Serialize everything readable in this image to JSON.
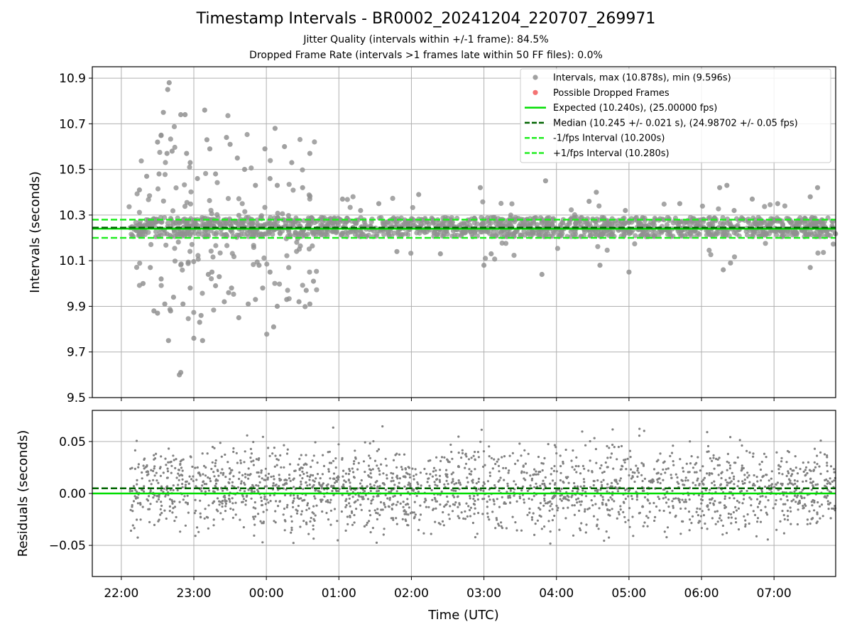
{
  "chart_data": {
    "type": "scatter",
    "title": "Timestamp Intervals - BR0002_20241204_220707_269971",
    "subtitle_lines": [
      "Jitter Quality (intervals within +/-1 frame): 84.5%",
      "Dropped Frame Rate (intervals >1 frames late within 50 FF files): 0.0%"
    ],
    "xlabel": "Time (UTC)",
    "x_ticks": [
      "22:00",
      "23:00",
      "00:00",
      "01:00",
      "02:00",
      "03:00",
      "04:00",
      "05:00",
      "06:00",
      "07:00"
    ],
    "panels": [
      {
        "id": "intervals",
        "ylabel": "Intervals (seconds)",
        "ylim": [
          9.5,
          10.95
        ],
        "y_ticks": [
          "9.5",
          "9.7",
          "9.9",
          "10.1",
          "10.3",
          "10.5",
          "10.7",
          "10.9"
        ],
        "grid": true,
        "legend_position": "top-right",
        "series": [
          {
            "name": "Intervals, max (10.878s), min (9.596s)",
            "kind": "points",
            "color": "#909090"
          },
          {
            "name": "Possible Dropped Frames",
            "kind": "points",
            "color": "#f25a5a",
            "count": 0
          },
          {
            "name": "Expected (10.240s), (25.00000 fps)",
            "kind": "hline",
            "y": 10.24,
            "color": "#00dd00",
            "style": "solid"
          },
          {
            "name": "Median (10.245 +/- 0.021 s), (24.98702 +/- 0.05 fps)",
            "kind": "hline",
            "y": 10.245,
            "color": "#006400",
            "style": "dashed"
          },
          {
            "name": "-1/fps Interval (10.200s)",
            "kind": "hline",
            "y": 10.2,
            "color": "#22ee22",
            "style": "dashed"
          },
          {
            "name": "+1/fps Interval (10.280s)",
            "kind": "hline",
            "y": 10.28,
            "color": "#22ee22",
            "style": "dashed"
          }
        ],
        "time_range_hours": [
          22.12,
          31.85
        ],
        "typical_band": [
          10.205,
          10.29
        ],
        "outliers": [
          [
            22.25,
            10.41
          ],
          [
            22.35,
            10.47
          ],
          [
            22.5,
            10.62
          ],
          [
            22.52,
            10.48
          ],
          [
            22.55,
            10.65
          ],
          [
            22.58,
            10.75
          ],
          [
            22.63,
            10.57
          ],
          [
            22.64,
            10.85
          ],
          [
            22.66,
            10.88
          ],
          [
            22.7,
            10.58
          ],
          [
            22.82,
            10.74
          ],
          [
            22.88,
            10.74
          ],
          [
            22.9,
            10.57
          ],
          [
            22.95,
            10.53
          ],
          [
            23.05,
            10.46
          ],
          [
            23.15,
            10.76
          ],
          [
            23.18,
            10.63
          ],
          [
            23.22,
            10.59
          ],
          [
            23.3,
            10.48
          ],
          [
            23.45,
            10.64
          ],
          [
            23.5,
            10.61
          ],
          [
            23.6,
            10.55
          ],
          [
            23.7,
            10.5
          ],
          [
            23.85,
            10.43
          ],
          [
            23.98,
            10.59
          ],
          [
            24.05,
            10.46
          ],
          [
            24.12,
            10.68
          ],
          [
            24.15,
            10.43
          ],
          [
            24.25,
            10.6
          ],
          [
            24.35,
            10.53
          ],
          [
            24.5,
            10.42
          ],
          [
            24.6,
            10.57
          ],
          [
            22.3,
            10.0
          ],
          [
            22.4,
            10.07
          ],
          [
            22.45,
            9.88
          ],
          [
            22.5,
            9.87
          ],
          [
            22.55,
            10.02
          ],
          [
            22.6,
            9.91
          ],
          [
            22.65,
            9.75
          ],
          [
            22.68,
            9.88
          ],
          [
            22.72,
            9.94
          ],
          [
            22.8,
            9.6
          ],
          [
            22.82,
            9.61
          ],
          [
            22.85,
            9.91
          ],
          [
            22.95,
            9.98
          ],
          [
            23.0,
            9.76
          ],
          [
            23.08,
            9.83
          ],
          [
            23.1,
            9.86
          ],
          [
            23.12,
            9.75
          ],
          [
            23.2,
            10.04
          ],
          [
            23.25,
            10.05
          ],
          [
            23.3,
            9.99
          ],
          [
            23.35,
            10.03
          ],
          [
            23.42,
            9.92
          ],
          [
            23.48,
            9.96
          ],
          [
            23.52,
            9.98
          ],
          [
            23.62,
            9.85
          ],
          [
            23.75,
            9.91
          ],
          [
            23.85,
            9.93
          ],
          [
            23.9,
            10.08
          ],
          [
            23.95,
            9.98
          ],
          [
            24.05,
            10.05
          ],
          [
            24.1,
            9.81
          ],
          [
            24.15,
            9.9
          ],
          [
            24.28,
            9.93
          ],
          [
            24.45,
            9.92
          ],
          [
            24.55,
            9.97
          ],
          [
            24.6,
            9.91
          ],
          [
            24.65,
            10.01
          ],
          [
            25.05,
            10.37
          ],
          [
            25.3,
            10.32
          ],
          [
            25.55,
            10.35
          ],
          [
            25.8,
            10.14
          ],
          [
            26.1,
            10.39
          ],
          [
            26.4,
            10.13
          ],
          [
            26.95,
            10.42
          ],
          [
            27.0,
            10.08
          ],
          [
            27.1,
            10.13
          ],
          [
            27.85,
            10.45
          ],
          [
            27.8,
            10.04
          ],
          [
            28.45,
            10.36
          ],
          [
            28.55,
            10.4
          ],
          [
            28.6,
            10.08
          ],
          [
            28.95,
            10.32
          ],
          [
            29.0,
            10.05
          ],
          [
            29.7,
            10.35
          ],
          [
            30.25,
            10.42
          ],
          [
            30.35,
            10.43
          ],
          [
            30.3,
            10.06
          ],
          [
            30.4,
            10.09
          ],
          [
            30.45,
            10.32
          ],
          [
            30.7,
            10.37
          ],
          [
            31.05,
            10.35
          ],
          [
            31.5,
            10.38
          ],
          [
            31.6,
            10.42
          ],
          [
            31.5,
            10.07
          ]
        ]
      },
      {
        "id": "residuals",
        "ylabel": "Residuals (seconds)",
        "ylim": [
          -0.08,
          0.08
        ],
        "y_ticks": [
          "−0.05",
          "0.00",
          "0.05"
        ],
        "grid": true,
        "series": [
          {
            "kind": "points",
            "color": "#808080"
          },
          {
            "kind": "hline",
            "y": 0.0,
            "color": "#00dd00",
            "style": "solid"
          },
          {
            "kind": "hline",
            "y": 0.005,
            "color": "#006400",
            "style": "dashed"
          }
        ],
        "typical_range": [
          -0.035,
          0.045
        ]
      }
    ]
  }
}
